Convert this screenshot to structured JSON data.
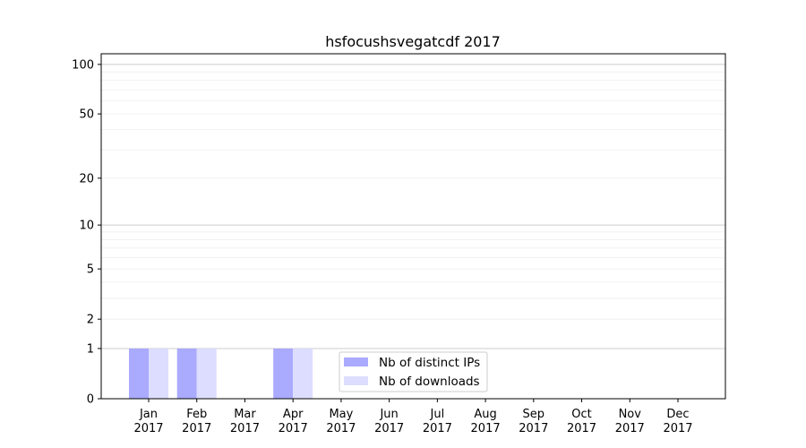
{
  "chart_data": {
    "type": "bar",
    "title": "hsfocushsvegatcdf 2017",
    "xlabel": "",
    "ylabel": "",
    "y_scale": "log(1+y)",
    "ylim": [
      0,
      116
    ],
    "grid": "horizontal, major and minor",
    "legend_placement": "lower-center",
    "categories": [
      "Jan\n2017",
      "Feb\n2017",
      "Mar\n2017",
      "Apr\n2017",
      "May\n2017",
      "Jun\n2017",
      "Jul\n2017",
      "Aug\n2017",
      "Sep\n2017",
      "Oct\n2017",
      "Nov\n2017",
      "Dec\n2017"
    ],
    "y_ticks": [
      0,
      1,
      2,
      5,
      10,
      20,
      50,
      100
    ],
    "series": [
      {
        "name": "Nb of distinct IPs",
        "color": "#aaaaff",
        "values": [
          1,
          1,
          0,
          1,
          0,
          0,
          0,
          0,
          0,
          0,
          0,
          0
        ]
      },
      {
        "name": "Nb of downloads",
        "color": "#ddddff",
        "values": [
          1,
          1,
          0,
          1,
          0,
          0,
          0,
          0,
          0,
          0,
          0,
          0
        ]
      }
    ]
  }
}
